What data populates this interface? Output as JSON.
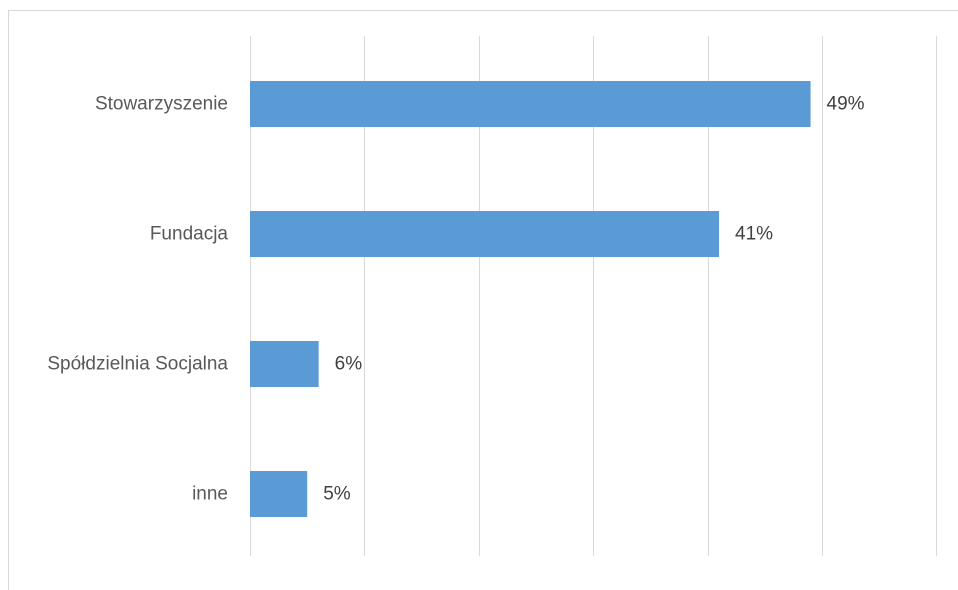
{
  "chart_data": {
    "type": "bar",
    "orientation": "horizontal",
    "categories": [
      "Stowarzyszenie",
      "Fundacja",
      "Spółdzielnia Socjalna",
      "inne"
    ],
    "values": [
      49,
      41,
      6,
      5
    ],
    "data_labels": [
      "49%",
      "41%",
      "6%",
      "5%"
    ],
    "unit": "%",
    "xlim": [
      0,
      60
    ],
    "x_gridline_step": 10,
    "grid": "vertical",
    "legend": "none",
    "bar_color": "#5b9bd5",
    "gridline_color": "#d9d9d9"
  }
}
